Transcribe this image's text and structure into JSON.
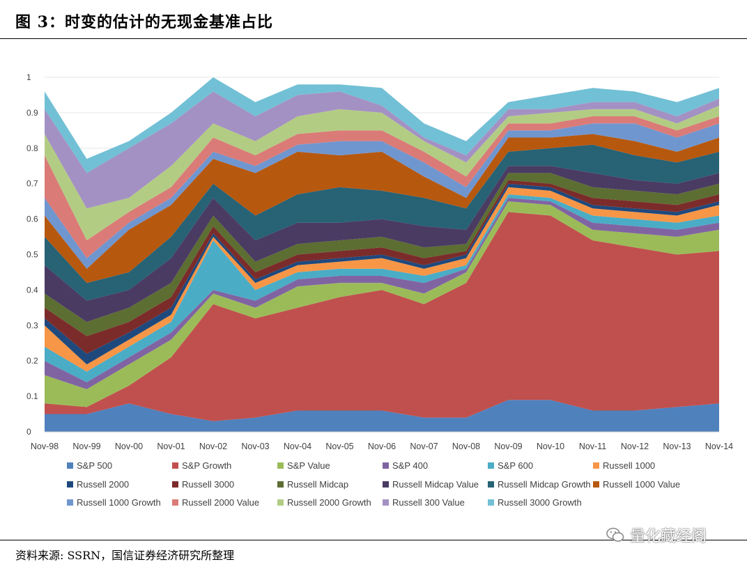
{
  "header": {
    "title": "图 3：时变的估计的无现金基准占比"
  },
  "footer": {
    "source": "资料来源: SSRN，国信证券经济研究所整理"
  },
  "watermark": {
    "text": "量化藏经阁",
    "icon": "wechat-icon"
  },
  "chart_data": {
    "type": "area",
    "stacked": true,
    "ylim": [
      0,
      1
    ],
    "yticks": [
      "0",
      "0.1",
      "0.2",
      "0.3",
      "0.4",
      "0.5",
      "0.6",
      "0.7",
      "0.8",
      "0.9",
      "1"
    ],
    "categories": [
      "Nov-98",
      "Nov-99",
      "Nov-00",
      "Nov-01",
      "Nov-02",
      "Nov-03",
      "Nov-04",
      "Nov-05",
      "Nov-06",
      "Nov-07",
      "Nov-08",
      "Nov-09",
      "Nov-10",
      "Nov-11",
      "Nov-12",
      "Nov-13",
      "Nov-14"
    ],
    "legend_position": "bottom",
    "series": [
      {
        "name": "S&P 500",
        "color": "#4F81BD",
        "values": [
          0.05,
          0.05,
          0.08,
          0.05,
          0.03,
          0.04,
          0.06,
          0.06,
          0.06,
          0.04,
          0.04,
          0.09,
          0.09,
          0.06,
          0.06,
          0.07,
          0.08
        ]
      },
      {
        "name": "S&P Growth",
        "color": "#C0504D",
        "values": [
          0.03,
          0.02,
          0.05,
          0.16,
          0.33,
          0.28,
          0.29,
          0.32,
          0.34,
          0.32,
          0.38,
          0.53,
          0.52,
          0.48,
          0.46,
          0.43,
          0.43
        ]
      },
      {
        "name": "S&P Value",
        "color": "#9BBB59",
        "values": [
          0.08,
          0.05,
          0.06,
          0.05,
          0.03,
          0.03,
          0.06,
          0.04,
          0.02,
          0.03,
          0.03,
          0.03,
          0.03,
          0.03,
          0.04,
          0.05,
          0.06
        ]
      },
      {
        "name": "S&P 400",
        "color": "#8064A2",
        "values": [
          0.04,
          0.02,
          0.02,
          0.02,
          0.01,
          0.02,
          0.02,
          0.02,
          0.02,
          0.03,
          0.01,
          0.01,
          0.01,
          0.02,
          0.02,
          0.02,
          0.02
        ]
      },
      {
        "name": "S&P 600",
        "color": "#4BACC6",
        "values": [
          0.04,
          0.03,
          0.03,
          0.03,
          0.14,
          0.03,
          0.02,
          0.02,
          0.02,
          0.02,
          0.01,
          0.01,
          0.01,
          0.02,
          0.02,
          0.02,
          0.02
        ]
      },
      {
        "name": "Russell 1000",
        "color": "#F79646",
        "values": [
          0.06,
          0.02,
          0.02,
          0.02,
          0.01,
          0.02,
          0.02,
          0.02,
          0.03,
          0.02,
          0.02,
          0.02,
          0.02,
          0.02,
          0.02,
          0.02,
          0.03
        ]
      },
      {
        "name": "Russell 2000",
        "color": "#1F497D",
        "values": [
          0.02,
          0.03,
          0.02,
          0.02,
          0.01,
          0.01,
          0.01,
          0.01,
          0.01,
          0.01,
          0.01,
          0.01,
          0.01,
          0.01,
          0.01,
          0.01,
          0.01
        ]
      },
      {
        "name": "Russell 3000",
        "color": "#7B2C2A",
        "values": [
          0.03,
          0.05,
          0.03,
          0.03,
          0.02,
          0.02,
          0.02,
          0.02,
          0.02,
          0.02,
          0.01,
          0.01,
          0.01,
          0.02,
          0.02,
          0.02,
          0.02
        ]
      },
      {
        "name": "Russell Midcap",
        "color": "#5C6E32",
        "values": [
          0.04,
          0.04,
          0.04,
          0.04,
          0.03,
          0.03,
          0.03,
          0.03,
          0.03,
          0.03,
          0.02,
          0.02,
          0.03,
          0.03,
          0.03,
          0.03,
          0.03
        ]
      },
      {
        "name": "Russell Midcap Value",
        "color": "#4A3B63",
        "values": [
          0.08,
          0.06,
          0.05,
          0.07,
          0.05,
          0.06,
          0.06,
          0.05,
          0.05,
          0.06,
          0.04,
          0.02,
          0.02,
          0.04,
          0.03,
          0.03,
          0.03
        ]
      },
      {
        "name": "Russell Midcap Growth",
        "color": "#276275",
        "values": [
          0.08,
          0.05,
          0.05,
          0.06,
          0.04,
          0.07,
          0.08,
          0.1,
          0.08,
          0.08,
          0.06,
          0.04,
          0.05,
          0.08,
          0.07,
          0.06,
          0.06
        ]
      },
      {
        "name": "Russell 1000 Value",
        "color": "#B7580F",
        "values": [
          0.06,
          0.04,
          0.12,
          0.09,
          0.07,
          0.12,
          0.12,
          0.09,
          0.11,
          0.06,
          0.03,
          0.04,
          0.03,
          0.03,
          0.04,
          0.03,
          0.04
        ]
      },
      {
        "name": "Russell 1000 Growth",
        "color": "#7096CF",
        "values": [
          0.05,
          0.03,
          0.02,
          0.02,
          0.02,
          0.02,
          0.02,
          0.04,
          0.03,
          0.04,
          0.03,
          0.02,
          0.02,
          0.03,
          0.05,
          0.04,
          0.04
        ]
      },
      {
        "name": "Russell 2000 Value",
        "color": "#DA7B78",
        "values": [
          0.12,
          0.05,
          0.03,
          0.03,
          0.04,
          0.03,
          0.03,
          0.03,
          0.03,
          0.03,
          0.03,
          0.02,
          0.02,
          0.02,
          0.02,
          0.02,
          0.02
        ]
      },
      {
        "name": "Russell 2000 Growth",
        "color": "#B3CC83",
        "values": [
          0.06,
          0.09,
          0.04,
          0.06,
          0.04,
          0.04,
          0.05,
          0.06,
          0.05,
          0.03,
          0.04,
          0.02,
          0.03,
          0.02,
          0.02,
          0.02,
          0.03
        ]
      },
      {
        "name": "Russell 300 Value",
        "color": "#A491C3",
        "values": [
          0.07,
          0.1,
          0.14,
          0.12,
          0.09,
          0.07,
          0.06,
          0.05,
          0.02,
          0.01,
          0.02,
          0.02,
          0.01,
          0.02,
          0.02,
          0.02,
          0.02
        ]
      },
      {
        "name": "Russell 3000 Growth",
        "color": "#72C0D5",
        "values": [
          0.05,
          0.04,
          0.02,
          0.03,
          0.04,
          0.04,
          0.03,
          0.02,
          0.05,
          0.04,
          0.04,
          0.02,
          0.04,
          0.04,
          0.03,
          0.04,
          0.03
        ]
      }
    ]
  }
}
